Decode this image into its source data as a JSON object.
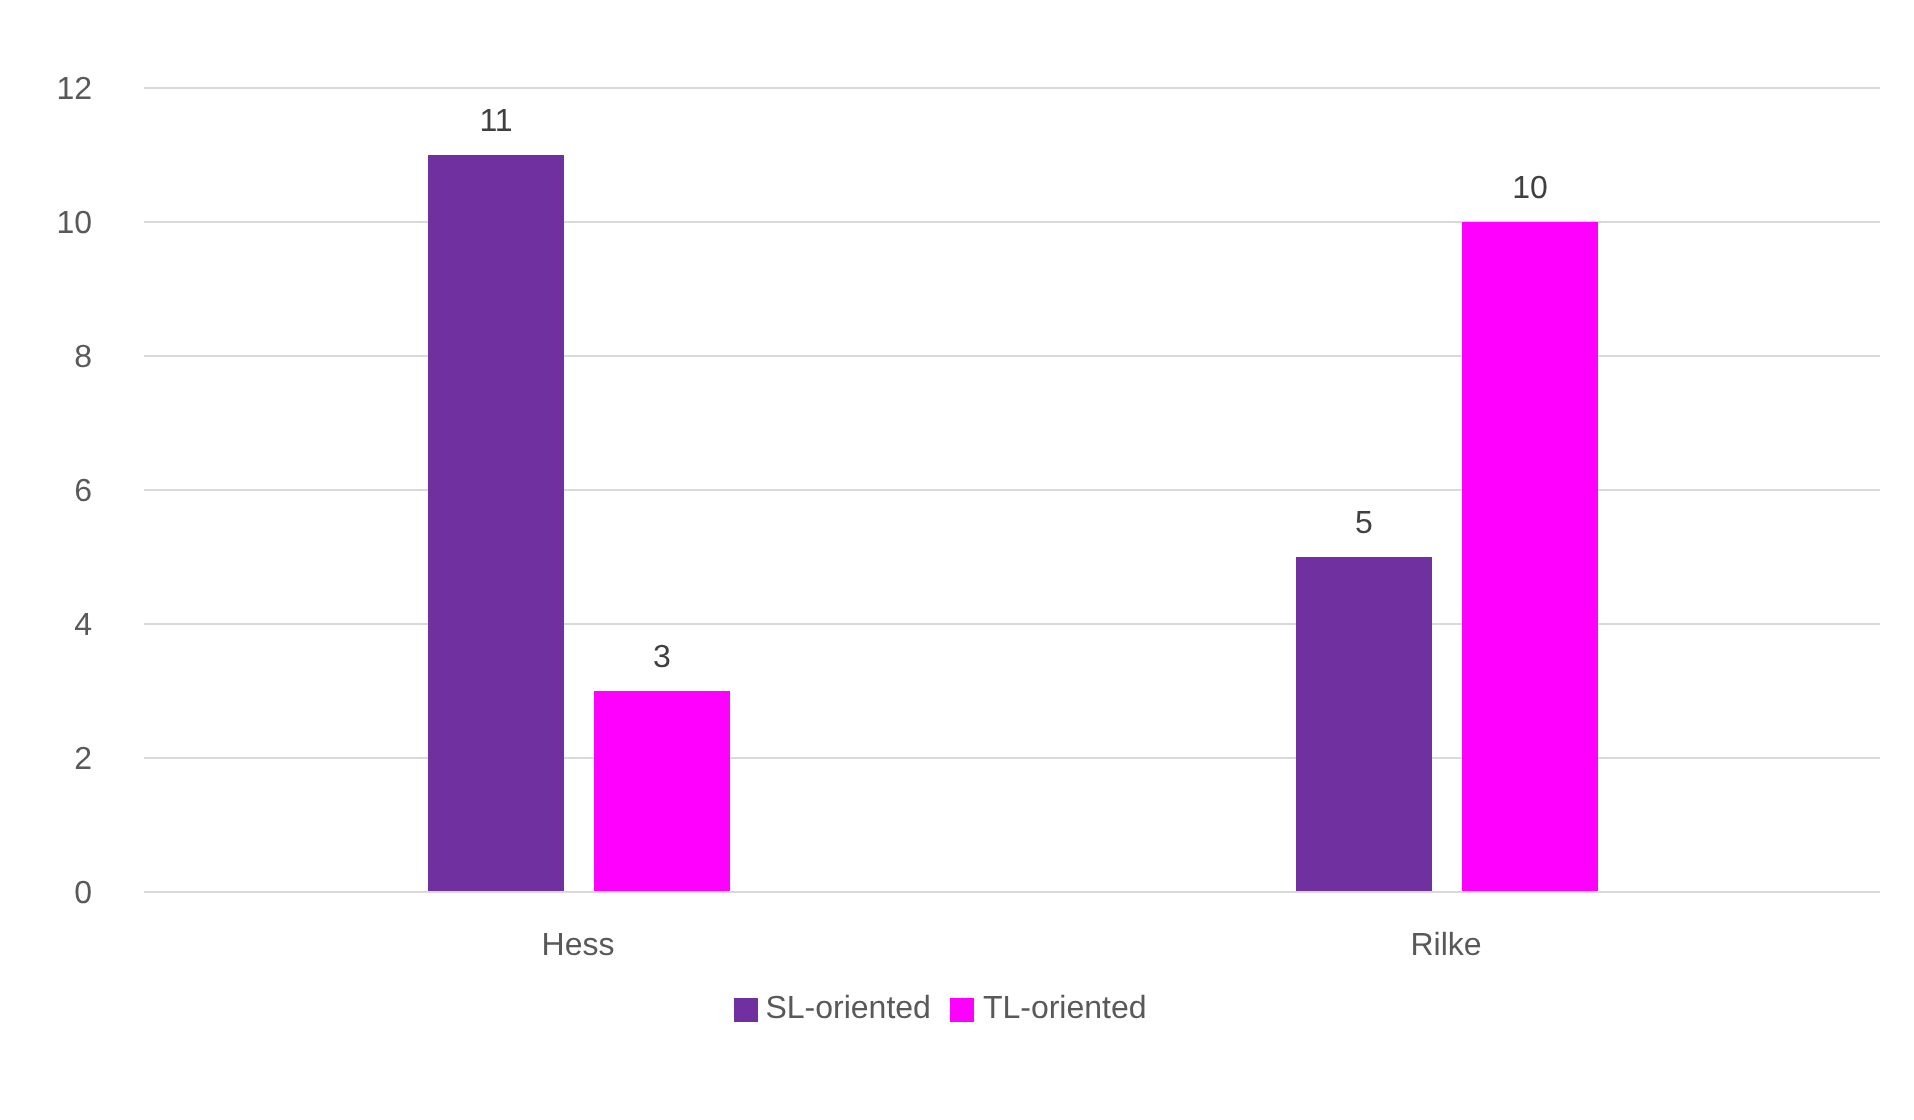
{
  "chart_data": {
    "type": "bar",
    "categories": [
      "Hess",
      "Rilke"
    ],
    "series": [
      {
        "name": "SL-oriented",
        "color": "#7030a0",
        "values": [
          11,
          5
        ]
      },
      {
        "name": "TL-oriented",
        "color": "#ff00ff",
        "values": [
          3,
          10
        ]
      }
    ],
    "ylim": [
      0,
      12
    ],
    "yticks": [
      0,
      2,
      4,
      6,
      8,
      10,
      12
    ],
    "grid": "y",
    "legend": "bottom",
    "data_labels": true
  }
}
